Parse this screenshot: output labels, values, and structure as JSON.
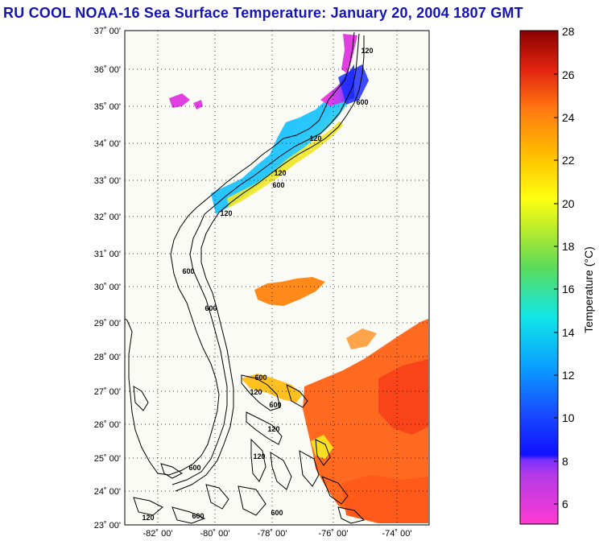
{
  "title": "RU COOL  NOAA-16  Sea Surface Temperature:  January 20, 2004 1807 GMT",
  "y_ticks": [
    "37˚ 00'",
    "36˚ 00'",
    "35˚ 00'",
    "34˚ 00'",
    "33˚ 00'",
    "32˚ 00'",
    "31˚ 00'",
    "30˚ 00'",
    "29˚ 00'",
    "28˚ 00'",
    "27˚ 00'",
    "26˚ 00'",
    "25˚ 00'",
    "24˚ 00'",
    "23˚ 00'"
  ],
  "x_ticks": [
    "-82˚ 00'",
    "-80˚ 00'",
    "-78˚ 00'",
    "-76˚ 00'",
    "-74˚ 00'"
  ],
  "colorbar": {
    "label": "Temperature (°C)",
    "ticks": [
      "28",
      "26",
      "24",
      "22",
      "20",
      "18",
      "16",
      "14",
      "12",
      "10",
      "8",
      "6"
    ],
    "min": 5,
    "max": 28
  },
  "contours": [
    "120",
    "600",
    "120",
    "600",
    "120",
    "600",
    "120",
    "600",
    "120",
    "600",
    "600",
    "120",
    "120",
    "600",
    "600",
    "120",
    "600"
  ],
  "colors": {
    "title": "#1414b4",
    "land_bg": "#fbfbf6",
    "coast": "#000000",
    "grid": "#000000"
  }
}
